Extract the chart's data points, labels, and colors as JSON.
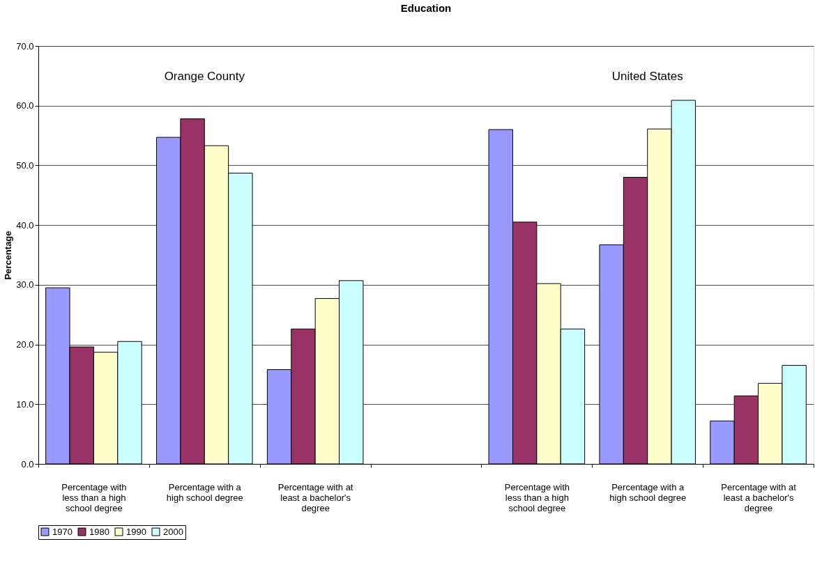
{
  "chart_data": {
    "type": "bar",
    "title": "Education",
    "ylabel": "Percentage",
    "categories": [
      "Percentage with less than a high school degree",
      "Percentage with a high school degree",
      "Percentage with at least a bachelor's degree",
      null,
      "Percentage with less than a high school degree",
      "Percentage with a high school degree",
      "Percentage with at least a bachelor's degree"
    ],
    "series": [
      {
        "name": "1970",
        "color": "#9999ff",
        "values": [
          29.5,
          54.7,
          15.8,
          null,
          56.0,
          36.7,
          7.2
        ]
      },
      {
        "name": "1980",
        "color": "#993366",
        "values": [
          19.6,
          57.8,
          22.6,
          null,
          40.5,
          48.0,
          11.4
        ]
      },
      {
        "name": "1990",
        "color": "#ffffcc",
        "values": [
          18.7,
          53.3,
          27.7,
          null,
          30.2,
          56.1,
          13.5
        ]
      },
      {
        "name": "2000",
        "color": "#ccffff",
        "values": [
          20.5,
          48.7,
          30.7,
          null,
          22.6,
          60.9,
          16.5
        ]
      }
    ],
    "ylim": [
      0,
      70
    ],
    "yticks": [
      {
        "value": 0,
        "label": "0.0"
      },
      {
        "value": 10,
        "label": "10.0"
      },
      {
        "value": 20,
        "label": "20.0"
      },
      {
        "value": 30,
        "label": "30.0"
      },
      {
        "value": 40,
        "label": "40.0"
      },
      {
        "value": 50,
        "label": "50.0"
      },
      {
        "value": 60,
        "label": "60.0"
      },
      {
        "value": 70,
        "label": "70.0"
      }
    ],
    "grid": "y",
    "legend": "bottom",
    "annotations": [
      "Orange County",
      "United States"
    ]
  }
}
